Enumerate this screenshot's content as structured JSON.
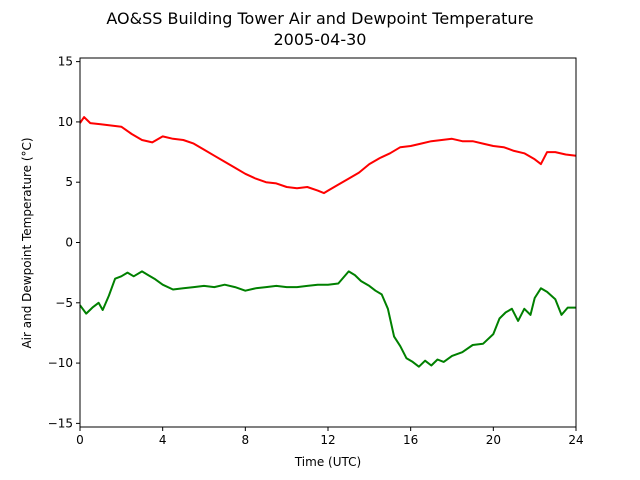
{
  "chart_data": {
    "type": "line",
    "title": "AO&SS Building Tower Air and Dewpoint Temperature",
    "subtitle": "2005-04-30",
    "xlabel": "Time (UTC)",
    "ylabel": "Air and Dewpoint Temperature (°C)",
    "xlim": [
      0,
      24
    ],
    "ylim": [
      -15.3,
      15.3
    ],
    "x_ticks": [
      0,
      4,
      8,
      12,
      16,
      20,
      24
    ],
    "y_ticks": [
      -15,
      -10,
      -5,
      0,
      5,
      10,
      15
    ],
    "grid": false,
    "legend": "none",
    "series": [
      {
        "color": "#ff0000",
        "x": [
          0,
          0.2,
          0.5,
          1,
          1.5,
          2,
          2.5,
          3,
          3.5,
          4,
          4.5,
          5,
          5.5,
          6,
          6.5,
          7,
          7.5,
          8,
          8.5,
          9,
          9.5,
          10,
          10.5,
          11,
          11.5,
          11.8,
          12,
          12.5,
          13,
          13.5,
          14,
          14.5,
          15,
          15.5,
          16,
          16.5,
          17,
          17.5,
          18,
          18.5,
          19,
          19.5,
          20,
          20.5,
          21,
          21.5,
          22,
          22.3,
          22.6,
          23,
          23.5,
          24
        ],
        "y": [
          9.9,
          10.4,
          9.9,
          9.8,
          9.7,
          9.6,
          9.0,
          8.5,
          8.3,
          8.8,
          8.6,
          8.5,
          8.2,
          7.7,
          7.2,
          6.7,
          6.2,
          5.7,
          5.3,
          5.0,
          4.9,
          4.6,
          4.5,
          4.6,
          4.3,
          4.1,
          4.3,
          4.8,
          5.3,
          5.8,
          6.5,
          7.0,
          7.4,
          7.9,
          8.0,
          8.2,
          8.4,
          8.5,
          8.6,
          8.4,
          8.4,
          8.2,
          8.0,
          7.9,
          7.6,
          7.4,
          6.9,
          6.5,
          7.5,
          7.5,
          7.3,
          7.2
        ]
      },
      {
        "color": "#008000",
        "x": [
          0,
          0.3,
          0.6,
          0.9,
          1.1,
          1.4,
          1.7,
          2,
          2.3,
          2.6,
          3,
          3.3,
          3.6,
          4,
          4.5,
          5,
          5.5,
          6,
          6.5,
          7,
          7.5,
          8,
          8.5,
          9,
          9.5,
          10,
          10.5,
          11,
          11.5,
          12,
          12.5,
          13,
          13.3,
          13.6,
          14,
          14.3,
          14.6,
          14.9,
          15.2,
          15.5,
          15.8,
          16.1,
          16.4,
          16.7,
          17,
          17.3,
          17.6,
          18,
          18.5,
          19,
          19.5,
          20,
          20.3,
          20.6,
          20.9,
          21.2,
          21.5,
          21.8,
          22,
          22.3,
          22.6,
          23,
          23.3,
          23.6,
          24
        ],
        "y": [
          -5.2,
          -5.9,
          -5.4,
          -5.0,
          -5.6,
          -4.4,
          -3.0,
          -2.8,
          -2.5,
          -2.8,
          -2.4,
          -2.7,
          -3.0,
          -3.5,
          -3.9,
          -3.8,
          -3.7,
          -3.6,
          -3.7,
          -3.5,
          -3.7,
          -4.0,
          -3.8,
          -3.7,
          -3.6,
          -3.7,
          -3.7,
          -3.6,
          -3.5,
          -3.5,
          -3.4,
          -2.4,
          -2.7,
          -3.2,
          -3.6,
          -4.0,
          -4.3,
          -5.5,
          -7.8,
          -8.6,
          -9.6,
          -9.9,
          -10.3,
          -9.8,
          -10.2,
          -9.7,
          -9.9,
          -9.4,
          -9.1,
          -8.5,
          -8.4,
          -7.6,
          -6.3,
          -5.8,
          -5.5,
          -6.5,
          -5.5,
          -6.0,
          -4.6,
          -3.8,
          -4.1,
          -4.7,
          -6.0,
          -5.4,
          -5.4
        ]
      }
    ]
  }
}
